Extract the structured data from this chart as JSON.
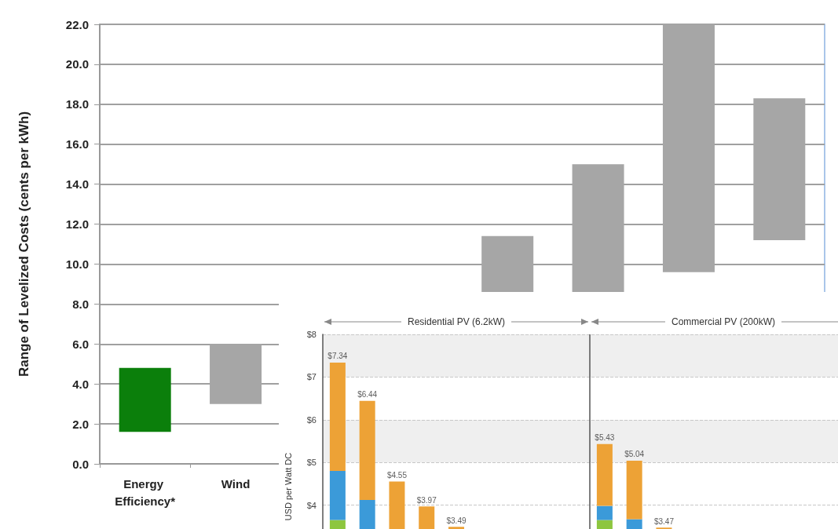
{
  "chart_data": [
    {
      "type": "bar",
      "ylabel": "Range of Levelized Costs (cents per kWh)",
      "categories": [
        "Energy Efficiency*",
        "Wind",
        null,
        null,
        null,
        null,
        null,
        null
      ],
      "base": [
        1.6,
        3.0,
        null,
        null,
        6.1,
        7.4,
        9.6,
        11.2
      ],
      "values": [
        3.2,
        3.0,
        null,
        null,
        5.3,
        7.6,
        12.4,
        7.1
      ],
      "colors": [
        "#0b7f0b",
        "#a6a6a6",
        "#a6a6a6",
        "#a6a6a6",
        "#a6a6a6",
        "#a6a6a6",
        "#a6a6a6",
        "#a6a6a6"
      ],
      "ylim": [
        0,
        22
      ],
      "yticks": [
        {
          "value": 0,
          "label": "0.0"
        },
        {
          "value": 2,
          "label": "2.0"
        },
        {
          "value": 4,
          "label": "4.0"
        },
        {
          "value": 6,
          "label": "6.0"
        },
        {
          "value": 8,
          "label": "8.0"
        },
        {
          "value": 10,
          "label": "10.0"
        },
        {
          "value": 12,
          "label": "12.0"
        },
        {
          "value": 14,
          "label": "14.0"
        },
        {
          "value": 16,
          "label": "16.0"
        },
        {
          "value": 18,
          "label": "18.0"
        },
        {
          "value": 20,
          "label": "20.0"
        },
        {
          "value": 22,
          "label": "22.0"
        }
      ],
      "grid": "y"
    },
    {
      "type": "bar",
      "ylabel": "USD per Watt DC",
      "annotations": [
        "Residential PV (6.2kW)",
        "Commercial PV (200kW)"
      ],
      "categories": [
        null,
        null,
        null,
        null,
        null,
        null,
        null,
        null,
        null,
        null,
        null,
        null,
        null,
        null,
        null,
        null,
        null,
        null
      ],
      "stacked": true,
      "series": [
        {
          "color": "#8dc63f",
          "values": [
            3.65,
            null,
            null,
            null,
            null,
            null,
            null,
            null,
            null,
            3.65,
            null,
            null,
            null,
            null,
            null,
            null,
            null,
            null
          ]
        },
        {
          "color": "#3b9ad9",
          "values": [
            1.15,
            4.12,
            null,
            null,
            null,
            null,
            null,
            null,
            null,
            0.33,
            3.67,
            null,
            null,
            null,
            null,
            null,
            null,
            null
          ]
        },
        {
          "color": "#eda236",
          "values": [
            2.54,
            2.32,
            4.55,
            3.97,
            3.49,
            null,
            null,
            null,
            null,
            1.45,
            1.37,
            3.47,
            null,
            null,
            null,
            null,
            null,
            null
          ]
        }
      ],
      "totals": [
        "$7.34",
        "$6.44",
        "$4.55",
        "$3.97",
        "$3.49",
        null,
        null,
        null,
        null,
        "$5.43",
        "$5.04",
        "$3.47",
        null,
        null,
        null,
        null,
        null,
        null
      ],
      "ylim": [
        0,
        8
      ],
      "yticks": [
        {
          "value": 4,
          "label": "$4"
        },
        {
          "value": 5,
          "label": "$5"
        },
        {
          "value": 6,
          "label": "$6"
        },
        {
          "value": 7,
          "label": "$7"
        },
        {
          "value": 8,
          "label": "$8"
        }
      ],
      "grid": "y",
      "tick_labels": "y"
    }
  ]
}
